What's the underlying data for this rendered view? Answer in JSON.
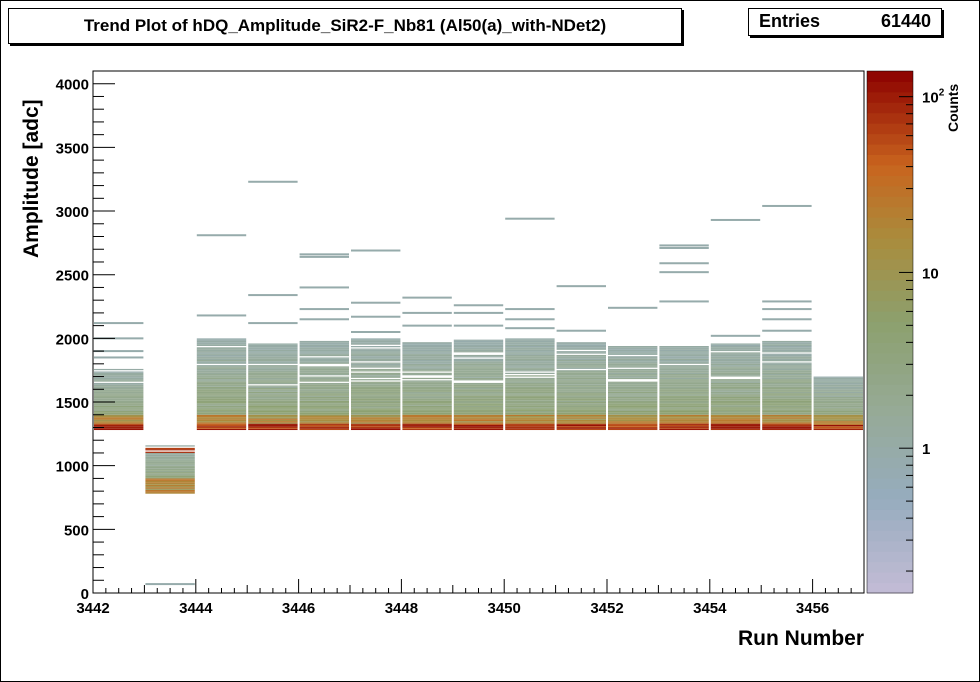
{
  "chart_data": {
    "type": "heatmap",
    "title": "Trend Plot of hDQ_Amplitude_SiR2-F_Nb81 (Al50(a)_with-NDet2)",
    "xlabel": "Run Number",
    "ylabel": "Amplitude [adc]",
    "zlabel": "Counts",
    "xlim": [
      3442,
      3457
    ],
    "ylim": [
      0,
      4100
    ],
    "zscale": "log",
    "zlim": [
      0.15,
      140
    ],
    "x_ticks": [
      3442,
      3444,
      3446,
      3448,
      3450,
      3452,
      3454,
      3456
    ],
    "y_ticks": [
      0,
      500,
      1000,
      1500,
      2000,
      2500,
      3000,
      3500,
      4000
    ],
    "z_ticks": [
      "1",
      "10",
      "10^2"
    ],
    "stats": {
      "label": "Entries",
      "value": "61440"
    },
    "runs": [
      {
        "run": 3442,
        "band": [
          1280,
          1760
        ],
        "peak": 1300,
        "outliers": [
          1850,
          1900,
          2000,
          2120
        ]
      },
      {
        "run": 3443,
        "band": [
          780,
          1160
        ],
        "peak": 1120,
        "outliers": [
          70
        ]
      },
      {
        "run": 3444,
        "band": [
          1280,
          2000
        ],
        "peak": 1300,
        "outliers": [
          2180,
          2810
        ]
      },
      {
        "run": 3445,
        "band": [
          1280,
          1960
        ],
        "peak": 1300,
        "outliers": [
          2120,
          2340,
          3230
        ]
      },
      {
        "run": 3446,
        "band": [
          1280,
          1980
        ],
        "peak": 1300,
        "outliers": [
          2150,
          2230,
          2400,
          2640,
          2660
        ]
      },
      {
        "run": 3447,
        "band": [
          1280,
          2000
        ],
        "peak": 1300,
        "outliers": [
          2050,
          2170,
          2280,
          2690
        ]
      },
      {
        "run": 3448,
        "band": [
          1280,
          1980
        ],
        "peak": 1300,
        "outliers": [
          2100,
          2200,
          2320
        ]
      },
      {
        "run": 3449,
        "band": [
          1280,
          1990
        ],
        "peak": 1300,
        "outliers": [
          2100,
          2200,
          2260
        ]
      },
      {
        "run": 3450,
        "band": [
          1280,
          2000
        ],
        "peak": 1300,
        "outliers": [
          2080,
          2150,
          2230,
          2940
        ]
      },
      {
        "run": 3451,
        "band": [
          1280,
          1970
        ],
        "peak": 1300,
        "outliers": [
          2060,
          2410
        ]
      },
      {
        "run": 3452,
        "band": [
          1280,
          1940
        ],
        "peak": 1300,
        "outliers": [
          2240
        ]
      },
      {
        "run": 3453,
        "band": [
          1280,
          1950
        ],
        "peak": 1300,
        "outliers": [
          2290,
          2520,
          2590,
          2710,
          2730
        ]
      },
      {
        "run": 3454,
        "band": [
          1280,
          1960
        ],
        "peak": 1300,
        "outliers": [
          2020,
          2930
        ]
      },
      {
        "run": 3455,
        "band": [
          1280,
          1980
        ],
        "peak": 1300,
        "outliers": [
          2060,
          2150,
          2230,
          2290,
          3040
        ]
      },
      {
        "run": 3456,
        "band": [
          1280,
          1700
        ],
        "peak": 1290,
        "outliers": []
      }
    ]
  }
}
